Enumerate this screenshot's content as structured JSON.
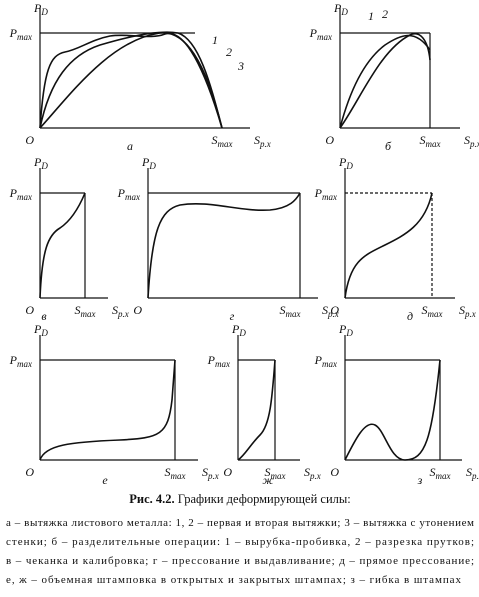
{
  "figure": {
    "axis_labels": {
      "force": {
        "base": "P",
        "sub": "D"
      },
      "pmax": {
        "base": "P",
        "sub": "max"
      },
      "smax": {
        "base": "S",
        "sub": "max"
      },
      "stroke": {
        "base": "S",
        "sub": "p.x"
      },
      "origin": "O"
    },
    "panels": [
      {
        "letter": "а",
        "curve_labels": [
          "1",
          "2",
          "3"
        ]
      },
      {
        "letter": "б",
        "curve_labels": [
          "1",
          "2"
        ]
      },
      {
        "letter": "в"
      },
      {
        "letter": "г"
      },
      {
        "letter": "д"
      },
      {
        "letter": "е"
      },
      {
        "letter": "ж"
      },
      {
        "letter": "з"
      }
    ]
  },
  "caption": {
    "number": "Рис. 4.2.",
    "title": "Графики деформирующей силы:",
    "lines": [
      "а – вытяжка листового металла: 1, 2 – первая и вторая вытяжки; 3 – вытяжка с утонением",
      "стенки; б – разделительные операции: 1 – вырубка-пробивка, 2 – разрезка прутков;",
      "в – чеканка и калибровка; г – прессование и выдавливание; д – прямое прессование;",
      "е, ж – объемная штамповка в открытых и закрытых штампах; з – гибка в штампах"
    ]
  }
}
